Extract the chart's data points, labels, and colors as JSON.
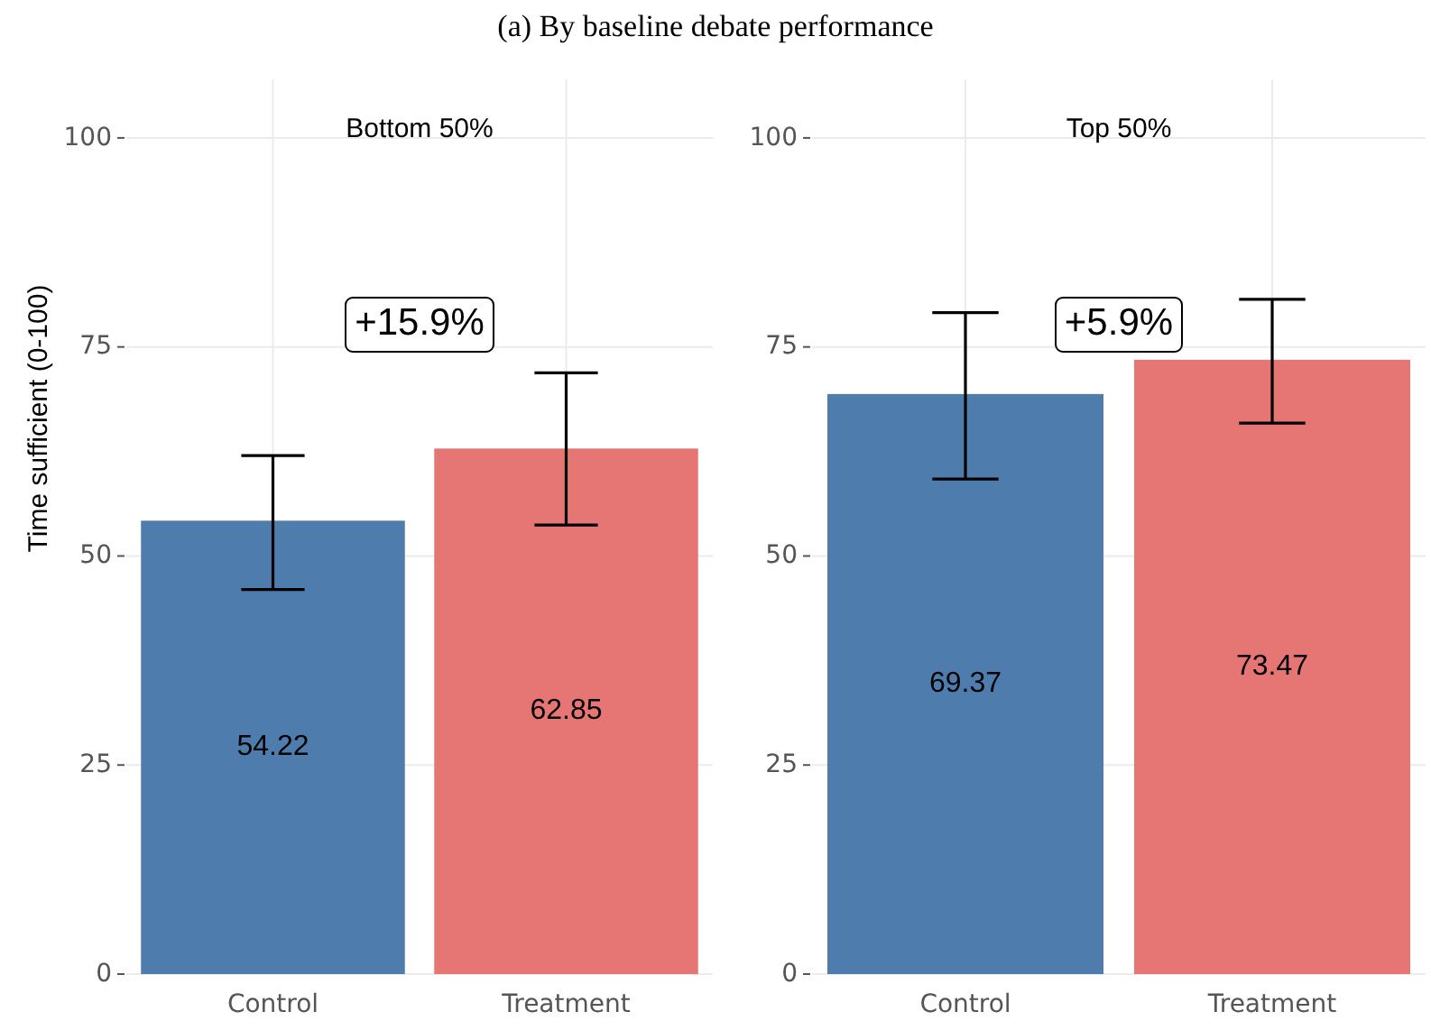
{
  "chart_data": [
    {
      "type": "bar",
      "title": "(a) By baseline debate performance",
      "subtitle": "Bottom 50%",
      "ylabel": "Time sufficient (0-100)",
      "categories": [
        "Control",
        "Treatment"
      ],
      "values": [
        54.22,
        62.85
      ],
      "colors": [
        "#4e7dad",
        "#e57674"
      ],
      "errors": [
        [
          46,
          62
        ],
        [
          53.7,
          71.9
        ]
      ],
      "data_labels": true,
      "annotations": [
        "+15.9%"
      ],
      "ylim": [
        0,
        107
      ],
      "yticks": [
        0,
        25,
        50,
        75,
        100
      ],
      "grid": true
    },
    {
      "type": "bar",
      "subtitle": "Top 50%",
      "categories": [
        "Control",
        "Treatment"
      ],
      "values": [
        69.37,
        73.47
      ],
      "colors": [
        "#4e7dad",
        "#e57674"
      ],
      "errors": [
        [
          59.2,
          79.1
        ],
        [
          65.9,
          80.7
        ]
      ],
      "data_labels": true,
      "annotations": [
        "+5.9%"
      ],
      "ylim": [
        0,
        107
      ],
      "yticks": [
        0,
        25,
        50,
        75,
        100
      ],
      "grid": true
    }
  ]
}
